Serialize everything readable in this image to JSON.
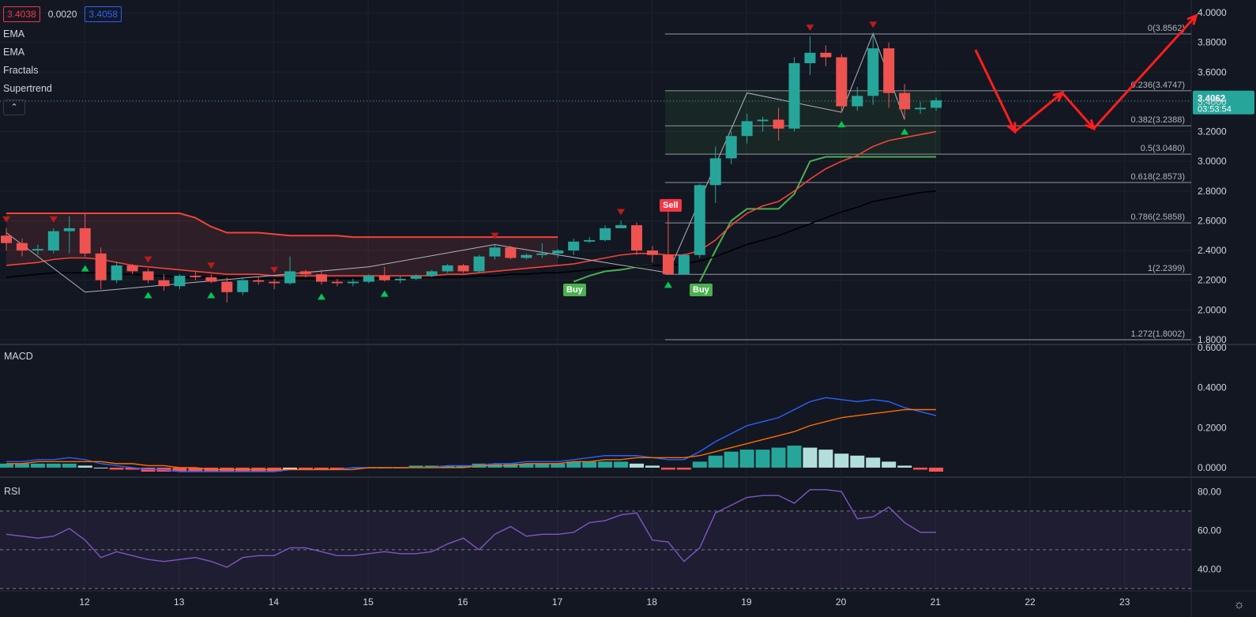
{
  "header": {
    "bid": "3.4038",
    "spread": "0.0020",
    "ask": "3.4058",
    "indicators": [
      "EMA",
      "EMA",
      "Fractals",
      "Supertrend"
    ],
    "collapse_icon": "chevron-up-icon"
  },
  "price_tag": {
    "price": "3.4062",
    "countdown": "03:53:54"
  },
  "signals": {
    "sell": "Sell",
    "buy": "Buy"
  },
  "panes": {
    "macd": "MACD",
    "rsi": "RSI"
  },
  "colors": {
    "bg": "#131722",
    "up": "#26a69a",
    "down": "#ef5350",
    "ema_fast": "#f44336",
    "ema_slow": "#000000",
    "supertrend_up": "#4caf50",
    "supertrend_down": "#f44336",
    "macd": "#2962ff",
    "signal": "#ff6d00",
    "rsi": "#7e57c2",
    "arrow": "#ff1e1e"
  },
  "chart_data": [
    {
      "type": "candlestick",
      "x_ticks": [
        "12",
        "13",
        "14",
        "15",
        "16",
        "17",
        "18",
        "19",
        "20",
        "21",
        "22",
        "23"
      ],
      "y_ticks": [
        "1.8000",
        "2.0000",
        "2.2000",
        "2.4000",
        "2.6000",
        "2.8000",
        "3.0000",
        "3.2000",
        "3.4000",
        "3.6000",
        "3.8000",
        "4.0000"
      ],
      "ylim": [
        1.8,
        4.0
      ],
      "candles": [
        [
          2.5,
          2.55,
          2.4,
          2.45
        ],
        [
          2.45,
          2.48,
          2.36,
          2.4
        ],
        [
          2.4,
          2.44,
          2.37,
          2.41
        ],
        [
          2.4,
          2.55,
          2.38,
          2.53
        ],
        [
          2.53,
          2.63,
          2.38,
          2.55
        ],
        [
          2.55,
          2.65,
          2.36,
          2.38
        ],
        [
          2.38,
          2.42,
          2.14,
          2.2
        ],
        [
          2.2,
          2.32,
          2.18,
          2.3
        ],
        [
          2.3,
          2.31,
          2.24,
          2.26
        ],
        [
          2.26,
          2.28,
          2.18,
          2.2
        ],
        [
          2.2,
          2.24,
          2.13,
          2.16
        ],
        [
          2.16,
          2.24,
          2.14,
          2.23
        ],
        [
          2.23,
          2.26,
          2.2,
          2.22
        ],
        [
          2.22,
          2.24,
          2.18,
          2.19
        ],
        [
          2.19,
          2.22,
          2.05,
          2.12
        ],
        [
          2.12,
          2.22,
          2.1,
          2.2
        ],
        [
          2.2,
          2.22,
          2.17,
          2.19
        ],
        [
          2.19,
          2.21,
          2.14,
          2.18
        ],
        [
          2.18,
          2.36,
          2.17,
          2.26
        ],
        [
          2.26,
          2.27,
          2.22,
          2.24
        ],
        [
          2.24,
          2.27,
          2.17,
          2.19
        ],
        [
          2.19,
          2.21,
          2.16,
          2.18
        ],
        [
          2.18,
          2.21,
          2.16,
          2.19
        ],
        [
          2.19,
          2.24,
          2.18,
          2.23
        ],
        [
          2.23,
          2.29,
          2.19,
          2.2
        ],
        [
          2.2,
          2.23,
          2.18,
          2.21
        ],
        [
          2.21,
          2.24,
          2.2,
          2.23
        ],
        [
          2.23,
          2.27,
          2.22,
          2.26
        ],
        [
          2.26,
          2.31,
          2.25,
          2.3
        ],
        [
          2.3,
          2.31,
          2.25,
          2.26
        ],
        [
          2.26,
          2.37,
          2.25,
          2.36
        ],
        [
          2.36,
          2.44,
          2.34,
          2.42
        ],
        [
          2.42,
          2.43,
          2.34,
          2.35
        ],
        [
          2.35,
          2.38,
          2.34,
          2.37
        ],
        [
          2.37,
          2.45,
          2.35,
          2.38
        ],
        [
          2.38,
          2.41,
          2.35,
          2.4
        ],
        [
          2.4,
          2.48,
          2.37,
          2.46
        ],
        [
          2.46,
          2.49,
          2.45,
          2.47
        ],
        [
          2.47,
          2.57,
          2.46,
          2.55
        ],
        [
          2.55,
          2.6,
          2.55,
          2.57
        ],
        [
          2.57,
          2.59,
          2.37,
          2.4
        ],
        [
          2.4,
          2.43,
          2.32,
          2.37
        ],
        [
          2.37,
          2.66,
          2.25,
          2.24
        ],
        [
          2.24,
          2.38,
          2.25,
          2.37
        ],
        [
          2.37,
          2.85,
          2.35,
          2.84
        ],
        [
          2.84,
          3.1,
          2.72,
          3.02
        ],
        [
          3.02,
          3.2,
          2.98,
          3.17
        ],
        [
          3.17,
          3.32,
          3.12,
          3.27
        ],
        [
          3.27,
          3.3,
          3.2,
          3.28
        ],
        [
          3.28,
          3.36,
          3.14,
          3.22
        ],
        [
          3.22,
          3.7,
          3.2,
          3.66
        ],
        [
          3.66,
          3.84,
          3.58,
          3.73
        ],
        [
          3.73,
          3.78,
          3.64,
          3.7
        ],
        [
          3.7,
          3.72,
          3.33,
          3.37
        ],
        [
          3.37,
          3.5,
          3.34,
          3.44
        ],
        [
          3.44,
          3.86,
          3.38,
          3.76
        ],
        [
          3.76,
          3.8,
          3.36,
          3.46
        ],
        [
          3.46,
          3.52,
          3.28,
          3.35
        ],
        [
          3.35,
          3.4,
          3.32,
          3.36
        ],
        [
          3.36,
          3.43,
          3.34,
          3.41
        ]
      ],
      "ema_fast": [
        2.3,
        2.31,
        2.32,
        2.34,
        2.35,
        2.35,
        2.34,
        2.32,
        2.3,
        2.29,
        2.28,
        2.27,
        2.26,
        2.25,
        2.24,
        2.24,
        2.24,
        2.23,
        2.23,
        2.23,
        2.23,
        2.23,
        2.23,
        2.23,
        2.23,
        2.23,
        2.23,
        2.23,
        2.24,
        2.24,
        2.25,
        2.26,
        2.27,
        2.28,
        2.29,
        2.3,
        2.31,
        2.33,
        2.35,
        2.37,
        2.38,
        2.38,
        2.37,
        2.37,
        2.4,
        2.47,
        2.57,
        2.65,
        2.7,
        2.73,
        2.8,
        2.88,
        2.95,
        3.0,
        3.04,
        3.1,
        3.14,
        3.16,
        3.18,
        3.2
      ],
      "ema_slow": [
        2.22,
        2.23,
        2.24,
        2.25,
        2.25,
        2.25,
        2.25,
        2.24,
        2.24,
        2.23,
        2.23,
        2.22,
        2.22,
        2.22,
        2.22,
        2.21,
        2.21,
        2.21,
        2.21,
        2.21,
        2.21,
        2.21,
        2.21,
        2.21,
        2.21,
        2.21,
        2.22,
        2.22,
        2.22,
        2.22,
        2.23,
        2.23,
        2.24,
        2.24,
        2.25,
        2.25,
        2.26,
        2.27,
        2.28,
        2.29,
        2.29,
        2.3,
        2.3,
        2.31,
        2.33,
        2.36,
        2.4,
        2.44,
        2.47,
        2.5,
        2.54,
        2.58,
        2.62,
        2.66,
        2.69,
        2.73,
        2.75,
        2.77,
        2.79,
        2.8
      ],
      "supertrend_down": [
        2.65,
        2.65,
        2.65,
        2.65,
        2.65,
        2.65,
        2.65,
        2.65,
        2.65,
        2.65,
        2.65,
        2.65,
        2.62,
        2.56,
        2.52,
        2.52,
        2.52,
        2.51,
        2.5,
        2.5,
        2.5,
        2.5,
        2.49,
        2.49,
        2.49,
        2.49,
        2.49,
        2.49,
        2.49,
        2.49,
        2.49,
        2.49,
        2.49,
        2.49,
        2.49,
        2.49
      ],
      "supertrend_up": [
        [
          36,
          2.19
        ],
        [
          37,
          2.23
        ],
        [
          38,
          2.26
        ],
        [
          39,
          2.27
        ],
        [
          40,
          2.29
        ],
        [
          41,
          2.3
        ],
        [
          44,
          2.19
        ],
        [
          45,
          2.4
        ],
        [
          46,
          2.6
        ],
        [
          47,
          2.68
        ],
        [
          48,
          2.68
        ],
        [
          49,
          2.68
        ],
        [
          50,
          2.78
        ],
        [
          51,
          3.0
        ],
        [
          52,
          3.03
        ],
        [
          53,
          3.03
        ],
        [
          54,
          3.03
        ],
        [
          55,
          3.03
        ],
        [
          56,
          3.03
        ],
        [
          57,
          3.03
        ],
        [
          58,
          3.03
        ],
        [
          59,
          3.03
        ]
      ],
      "fractals_up": [
        5,
        14,
        22,
        42,
        51
      ],
      "fractals_down": [
        0,
        3,
        9,
        13,
        17,
        31,
        39,
        51,
        55
      ],
      "fractals_up_bottom": [
        5,
        9,
        13,
        20,
        24,
        42,
        53,
        57
      ],
      "fib_levels": [
        {
          "label": "0(3.8562)",
          "value": 3.8562
        },
        {
          "label": "0.236(3.4747)",
          "value": 3.4747
        },
        {
          "label": "0.382(3.2388)",
          "value": 3.2388
        },
        {
          "label": "0.5(3.0480)",
          "value": 3.048
        },
        {
          "label": "0.618(2.8573)",
          "value": 2.8573
        },
        {
          "label": "0.786(2.5858)",
          "value": 2.5858
        },
        {
          "label": "1(2.2399)",
          "value": 2.2399
        },
        {
          "label": "1.272(1.8002)",
          "value": 1.8002
        }
      ],
      "projection": [
        [
          61.5,
          3.75
        ],
        [
          64,
          3.2
        ],
        [
          67,
          3.46
        ],
        [
          69,
          3.22
        ],
        [
          75.5,
          3.98
        ]
      ]
    },
    {
      "type": "macd",
      "title": "MACD",
      "y_ticks": [
        "0.0000",
        "0.2000",
        "0.4000",
        "0.6000"
      ],
      "ylim": [
        -0.02,
        0.6
      ],
      "histogram": [
        0.02,
        0.02,
        0.02,
        0.02,
        0.02,
        0.01,
        0.0,
        -0.01,
        -0.01,
        -0.02,
        -0.02,
        -0.02,
        -0.02,
        -0.02,
        -0.02,
        -0.02,
        -0.02,
        -0.02,
        -0.01,
        -0.01,
        -0.01,
        -0.01,
        0.0,
        0.0,
        0.0,
        0.0,
        0.01,
        0.01,
        0.01,
        0.01,
        0.02,
        0.02,
        0.02,
        0.02,
        0.02,
        0.02,
        0.03,
        0.03,
        0.03,
        0.03,
        0.02,
        0.01,
        -0.01,
        -0.01,
        0.03,
        0.06,
        0.08,
        0.09,
        0.09,
        0.1,
        0.11,
        0.1,
        0.09,
        0.07,
        0.06,
        0.05,
        0.03,
        0.01,
        -0.01,
        -0.02
      ],
      "macd": [
        0.03,
        0.03,
        0.04,
        0.04,
        0.05,
        0.04,
        0.02,
        0.01,
        0.0,
        -0.01,
        -0.01,
        -0.02,
        -0.02,
        -0.02,
        -0.02,
        -0.02,
        -0.02,
        -0.02,
        -0.01,
        -0.01,
        -0.01,
        -0.01,
        0.0,
        0.0,
        0.0,
        0.0,
        0.0,
        0.0,
        0.01,
        0.01,
        0.01,
        0.02,
        0.02,
        0.03,
        0.03,
        0.03,
        0.04,
        0.05,
        0.06,
        0.06,
        0.06,
        0.05,
        0.04,
        0.04,
        0.08,
        0.13,
        0.17,
        0.21,
        0.23,
        0.25,
        0.29,
        0.33,
        0.35,
        0.34,
        0.33,
        0.34,
        0.33,
        0.3,
        0.28,
        0.26
      ],
      "signal": [
        0.02,
        0.02,
        0.03,
        0.03,
        0.03,
        0.03,
        0.03,
        0.02,
        0.02,
        0.01,
        0.01,
        0.0,
        0.0,
        -0.01,
        -0.01,
        -0.01,
        -0.01,
        -0.01,
        -0.01,
        -0.01,
        -0.01,
        -0.01,
        -0.01,
        0.0,
        0.0,
        0.0,
        0.0,
        0.0,
        0.0,
        0.0,
        0.01,
        0.01,
        0.01,
        0.02,
        0.02,
        0.02,
        0.03,
        0.03,
        0.04,
        0.04,
        0.05,
        0.05,
        0.05,
        0.05,
        0.06,
        0.08,
        0.1,
        0.12,
        0.14,
        0.16,
        0.18,
        0.21,
        0.23,
        0.25,
        0.26,
        0.27,
        0.28,
        0.29,
        0.29,
        0.29
      ]
    },
    {
      "type": "line",
      "title": "RSI",
      "y_ticks": [
        "40.00",
        "60.00",
        "80.00"
      ],
      "ylim": [
        30,
        85
      ],
      "bands": [
        30,
        50,
        70
      ],
      "values": [
        58,
        57,
        56,
        57,
        61,
        55,
        46,
        49,
        47,
        45,
        44,
        45,
        46,
        44,
        41,
        46,
        47,
        47,
        51,
        51,
        49,
        47,
        47,
        48,
        49,
        48,
        48,
        49,
        53,
        56,
        50,
        58,
        62,
        57,
        58,
        58,
        59,
        64,
        65,
        68,
        69,
        55,
        54,
        44,
        51,
        69,
        73,
        77,
        78,
        78,
        74,
        81,
        81,
        80,
        66,
        67,
        72,
        64,
        59,
        59
      ]
    }
  ]
}
